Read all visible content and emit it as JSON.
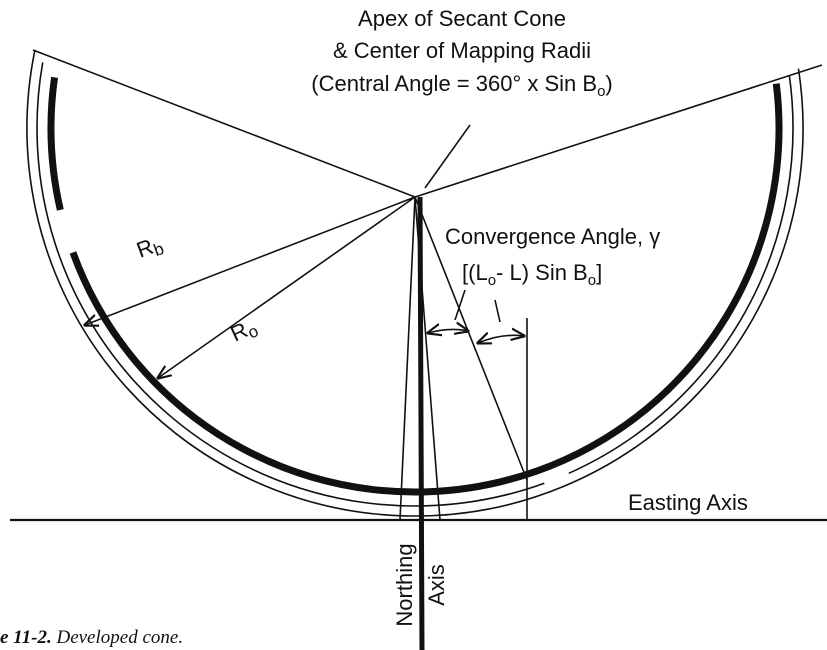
{
  "title": {
    "line1": "Apex of Secant Cone",
    "line2": "& Center of Mapping Radii",
    "line3": {
      "text": "(Central Angle = 360° x Sin B",
      "sub": "o",
      "end": ")"
    }
  },
  "convergence": {
    "label": "Convergence Angle, γ",
    "formula": {
      "open": "[(L",
      "sub1": "o",
      "mid": "- L) Sin B",
      "sub2": "o",
      "close": "]"
    }
  },
  "radii": {
    "rb": {
      "main": "R",
      "sub": "b"
    },
    "ro": {
      "main": "R",
      "sub": "o"
    }
  },
  "axes": {
    "easting": "Easting Axis",
    "northing": "Northing",
    "northing2": "Axis"
  },
  "caption": {
    "number": "e 11-2.",
    "text": " Developed cone."
  }
}
